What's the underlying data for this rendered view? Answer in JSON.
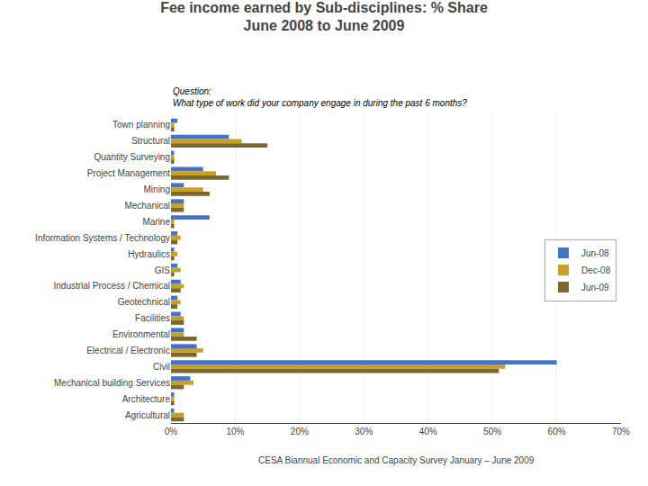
{
  "chart_data": {
    "type": "bar",
    "orientation": "horizontal",
    "title": "Fee income earned by Sub-disciplines: % Share\nJune 2008 to June 2009",
    "annotations": [
      "Question:\nWhat type of work did your company engage in during the past 6 months?",
      "CESA Biannual Economic and Capacity Survey January – June 2009"
    ],
    "categories": [
      "Town planning",
      "Structural",
      "Quantity Surveying",
      "Project Management",
      "Mining",
      "Mechanical",
      "Marine",
      "Information Systems / Technology",
      "Hydraulics",
      "GIS",
      "Industrial Process / Chemical",
      "Geotechnical",
      "Facilities",
      "Environmental",
      "Electrical / Electronic",
      "Civil",
      "Mechanical building Services",
      "Architecture",
      "Agricultural"
    ],
    "series": [
      {
        "name": "Jun-08",
        "color": "#4472C4",
        "values": [
          1,
          9,
          0.5,
          5,
          2,
          2,
          6,
          1,
          0.5,
          1,
          1.5,
          1,
          1.5,
          2,
          4,
          60,
          3,
          0.5,
          0.5
        ]
      },
      {
        "name": "Dec-08",
        "color": "#C8A028",
        "values": [
          0.5,
          11,
          0.5,
          7,
          5,
          2,
          0.5,
          1.5,
          1,
          1.5,
          2,
          1.5,
          2,
          2,
          5,
          52,
          3.5,
          0.5,
          2
        ]
      },
      {
        "name": "Jun-09",
        "color": "#7B6830",
        "values": [
          0.5,
          15,
          0.5,
          9,
          6,
          2,
          0.5,
          1,
          0.5,
          0.5,
          1.5,
          1,
          2,
          4,
          4,
          51,
          2,
          0.5,
          2
        ]
      }
    ],
    "xlim": [
      0,
      70
    ],
    "xticks": [
      {
        "value": 0,
        "label": "0%"
      },
      {
        "value": 10,
        "label": "10%"
      },
      {
        "value": 20,
        "label": "20%"
      },
      {
        "value": 30,
        "label": "30%"
      },
      {
        "value": 40,
        "label": "40%"
      },
      {
        "value": 50,
        "label": "50%"
      },
      {
        "value": 60,
        "label": "60%"
      },
      {
        "value": 70,
        "label": "70%"
      }
    ],
    "grid": true,
    "legend": "right"
  }
}
